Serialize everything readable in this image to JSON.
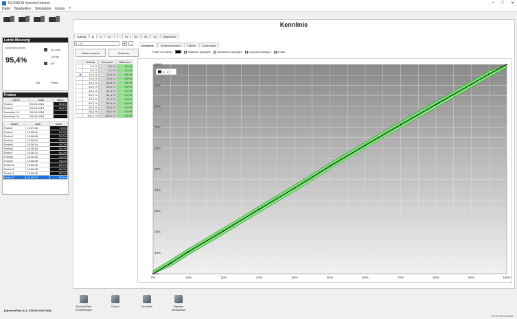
{
  "window": {
    "title": "TECHKON SpectroConnect",
    "controls": [
      "–",
      "□",
      "✕"
    ]
  },
  "menu": [
    "Datei",
    "Bearbeiten",
    "Simulation",
    "Extras",
    "?"
  ],
  "left": {
    "last_header": "Letzte Messung",
    "tone_label": "Tonwertzunahme",
    "tone_value": "95,4%",
    "lpcm": "52 L/cm",
    "lpi": "145 lpi",
    "angle": "45°",
    "am": "AM",
    "form": "Punkt",
    "probes_header": "Proben",
    "probes_cols": [
      "Name",
      "Date",
      "Value"
    ],
    "probes": [
      {
        "name": "Probe1",
        "date": "05.09.2018",
        "value": "95,4%"
      },
      {
        "name": "Probe2",
        "date": "05.09.2018",
        "value": "95,4%"
      },
      {
        "name": "Kennlinie 1K",
        "date": "05.09.2018",
        "value": ""
      },
      {
        "name": "Kennlinie 2K",
        "date": "05.09.2018",
        "value": ""
      }
    ],
    "sub_cols": [
      "Name",
      "Date",
      "Value"
    ],
    "sub": [
      {
        "name": "Probe1",
        "date": "10:37:46",
        "value": "5,3%"
      },
      {
        "name": "Probe2",
        "date": "10:38:01",
        "value": "12,0%"
      },
      {
        "name": "Probe3",
        "date": "10:38:06",
        "value": "20,0%"
      },
      {
        "name": "Probe4",
        "date": "10:38:10",
        "value": "30,0%"
      },
      {
        "name": "Probe5",
        "date": "10:38:14",
        "value": "40,0%"
      },
      {
        "name": "Probe6",
        "date": "10:38:18",
        "value": "50,0%"
      },
      {
        "name": "Probe7",
        "date": "10:38:22",
        "value": "60,0%"
      },
      {
        "name": "Probe8",
        "date": "10:38:25",
        "value": "70,0%"
      },
      {
        "name": "Probe9",
        "date": "10:38:28",
        "value": "75,0%"
      },
      {
        "name": "Probe10",
        "date": "10:38:32",
        "value": "80,0%"
      },
      {
        "name": "Probe11",
        "date": "10:38:35",
        "value": "90,0%"
      },
      {
        "name": "Probe12",
        "date": "10:38:38",
        "value": "95,0%"
      },
      {
        "name": "Probe13",
        "date": "10:38:42",
        "value": "95,4%"
      }
    ],
    "status": "[SpectroPlate ALL-VISION ZA67484]"
  },
  "main": {
    "title": "Kennlinie",
    "top_tabs": [
      "Auftrag",
      "K",
      "C",
      "M",
      "Y",
      "S1",
      "S2",
      "S3",
      "S4",
      "Mittelwerte"
    ],
    "selector_value": "K - K1",
    "btn_ref": "Referenzwerte",
    "btn_soll": "Sollwerte",
    "table_cols": [
      "Aufbau",
      "Messwert",
      "Differenz"
    ],
    "table_rows": [
      [
        "0,0 %",
        "0,0 %",
        "0,0 %"
      ],
      [
        "5,0 %",
        "5,1 %",
        "0,1 %"
      ],
      [
        "10,0 %",
        "10,5 %",
        "0,5 %"
      ],
      [
        "20,0 %",
        "20,5 %",
        "0,5 %"
      ],
      [
        "30,0 %",
        "30,8 %",
        "0,8 %"
      ],
      [
        "40,0 %",
        "40,9 %",
        "0,9 %"
      ],
      [
        "50,0 %",
        "51,4 %",
        "1,4 %"
      ],
      [
        "60,0 %",
        "61,4 %",
        "1,4 %"
      ],
      [
        "70,0 %",
        "71,2 %",
        "1,2 %"
      ],
      [
        "80,0 %",
        "80,9 %",
        "0,9 %"
      ],
      [
        "90,0 %",
        "90,5 %",
        "0,5 %"
      ],
      [
        "95,0 %",
        "95,4 %",
        "0,4 %"
      ],
      [
        "100,0 %",
        "100,0 %",
        "0,0 %"
      ]
    ],
    "chart_tabs": [
      "Kennlinie",
      "Tonwertzunahme",
      "Tabelle",
      "Kommentar"
    ],
    "opt_color": "Farbe Kennlinie:",
    "opt1": "Sollwerte anzeigen",
    "opt2": "Toleranzen anzeigen",
    "opt3": "Legende anzeigen",
    "opt4": "Kontur",
    "accent": "#7fe07a",
    "band_color": "#74e26f",
    "tools": [
      {
        "label": "SpectroPlate Einstellungen"
      },
      {
        "label": "Export"
      },
      {
        "label": "Kennlinie"
      },
      {
        "label": "Digitaler Messablauf"
      }
    ],
    "clock": "10:39  05.09.2018"
  },
  "chart_data": {
    "type": "line",
    "title": "",
    "xlabel": "",
    "ylabel": "",
    "xlim": [
      0,
      100
    ],
    "ylim": [
      0,
      100
    ],
    "x_ticks": [
      "0%",
      "10%",
      "20%",
      "30%",
      "40%",
      "50%",
      "60%",
      "70%",
      "80%",
      "90%",
      "100%"
    ],
    "y_ticks": [
      "0%",
      "10%",
      "20%",
      "30%",
      "40%",
      "50%",
      "60%",
      "70%",
      "80%",
      "90%",
      "100%"
    ],
    "grid": true,
    "legend": {
      "position": "top-left",
      "entries": [
        "K - K1"
      ]
    },
    "series": [
      {
        "name": "K - K1",
        "x": [
          0,
          5,
          10,
          20,
          30,
          40,
          50,
          60,
          70,
          80,
          90,
          95,
          100
        ],
        "y": [
          0,
          5.1,
          10.5,
          20.5,
          30.8,
          40.9,
          51.4,
          61.4,
          71.2,
          80.9,
          90.5,
          95.4,
          100
        ]
      }
    ],
    "tolerance": {
      "upper_offset": 1.5,
      "lower_offset": 1.5
    }
  }
}
